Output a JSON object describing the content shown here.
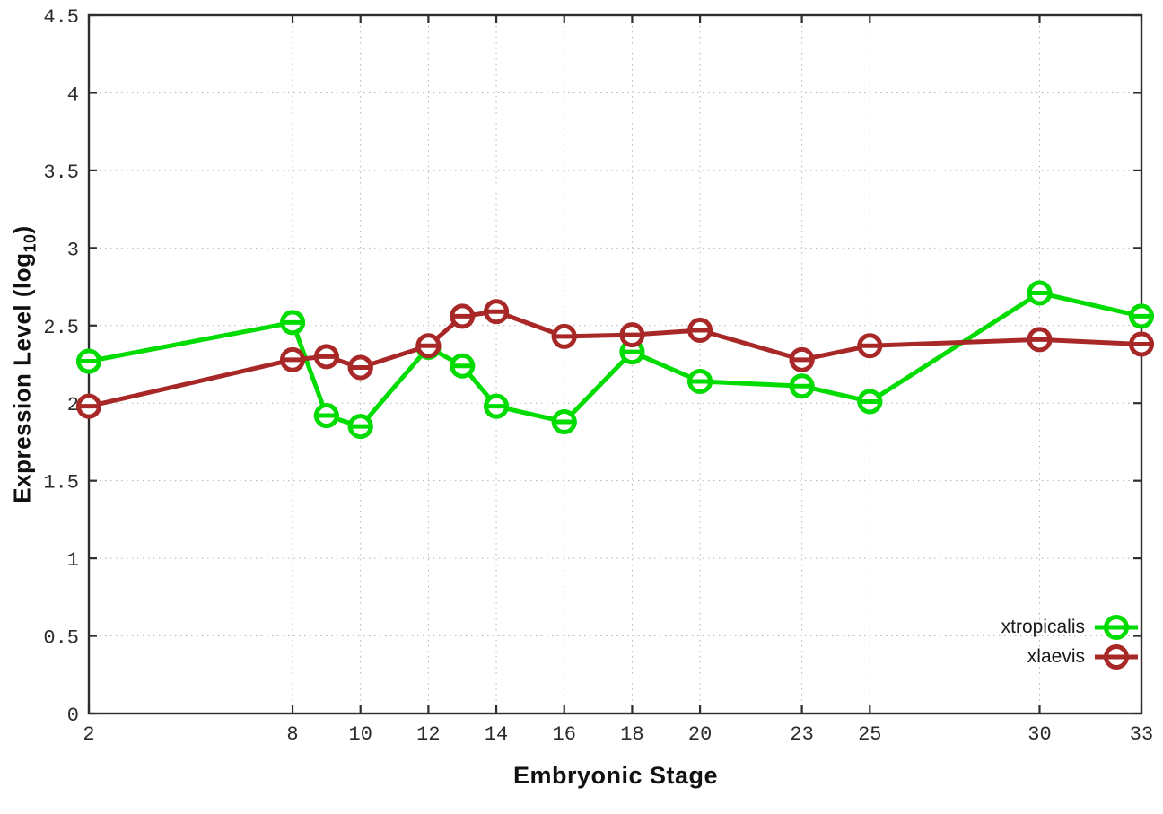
{
  "figure": {
    "background": "#ffffff"
  },
  "labels": {
    "x_title": "Embryonic Stage",
    "y_title_main": "Expression Level (log",
    "y_title_sub": "10",
    "y_title_close": ")"
  },
  "chart_data": {
    "type": "line",
    "title": "",
    "xlabel": "Embryonic Stage",
    "ylabel": "Expression Level (log10)",
    "xlim": [
      2,
      33
    ],
    "ylim": [
      0,
      4.5
    ],
    "grid": true,
    "legend_position": "bottom-right",
    "marker": "open-circle-with-horizontal-dash",
    "x": [
      2,
      8,
      9,
      10,
      12,
      13,
      14,
      16,
      18,
      20,
      23,
      25,
      30,
      33
    ],
    "xticks": [
      2,
      8,
      10,
      12,
      14,
      16,
      18,
      20,
      23,
      25,
      30,
      33
    ],
    "xtick_labels": [
      "2",
      "8",
      "10",
      "12",
      "14",
      "16",
      "18",
      "20",
      "23",
      "25",
      "30",
      "33"
    ],
    "yticks": [
      0,
      0.5,
      1,
      1.5,
      2,
      2.5,
      3,
      3.5,
      4,
      4.5
    ],
    "ytick_labels": [
      "0",
      "0.5",
      "1",
      "1.5",
      "2",
      "2.5",
      "3",
      "3.5",
      "4",
      "4.5"
    ],
    "series": [
      {
        "name": "xtropicalis",
        "color": "#00dc00",
        "values": [
          2.27,
          2.52,
          1.92,
          1.85,
          2.36,
          2.24,
          1.98,
          1.88,
          2.33,
          2.14,
          2.11,
          2.01,
          2.71,
          2.56
        ]
      },
      {
        "name": "xlaevis",
        "color": "#a82828",
        "values": [
          1.98,
          2.28,
          2.3,
          2.23,
          2.37,
          2.56,
          2.59,
          2.43,
          2.44,
          2.47,
          2.28,
          2.37,
          2.41,
          2.38
        ]
      }
    ]
  },
  "colors": {
    "border": "#2e2e2e",
    "grid": "#b4b4b4",
    "tick_text": "#2b2b2b"
  }
}
